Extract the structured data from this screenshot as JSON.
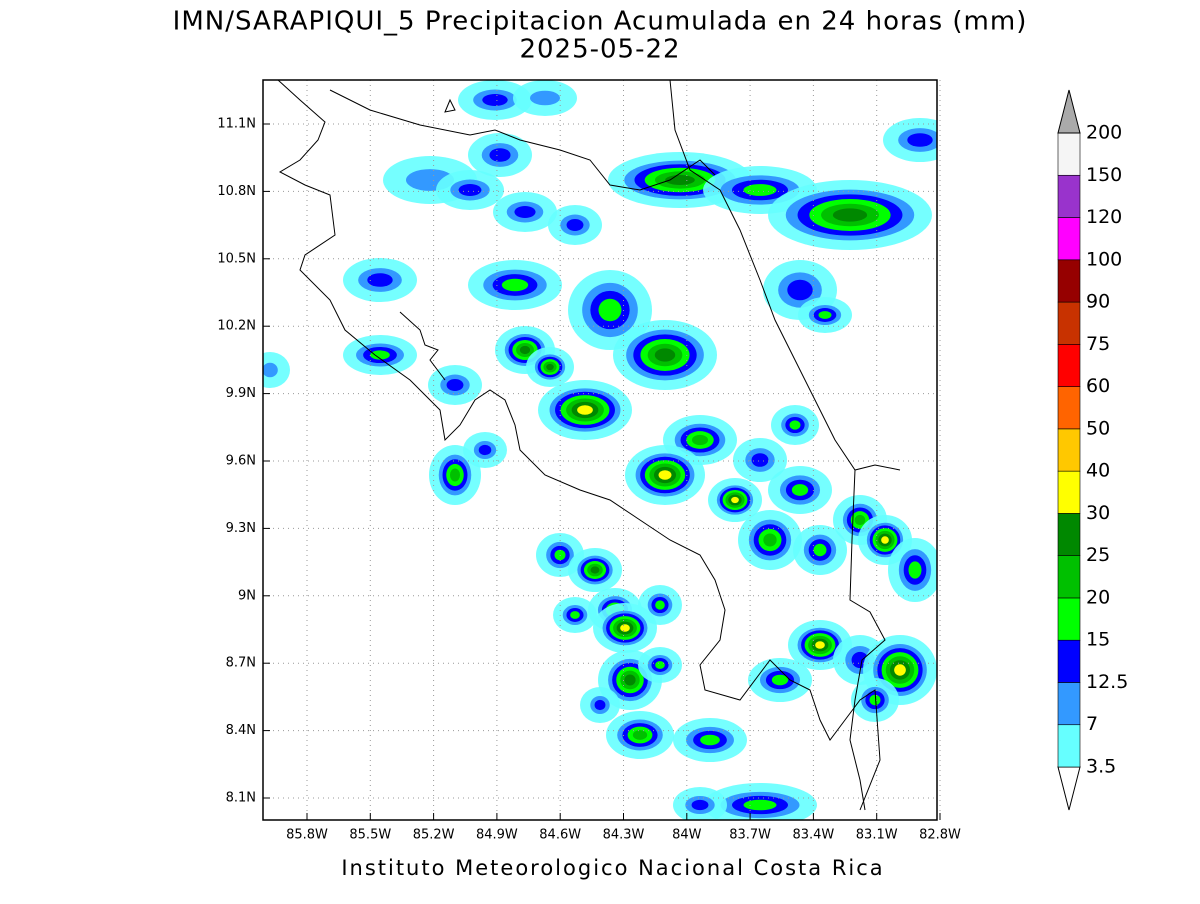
{
  "map": {
    "title": "IMN/SARAPIQUI_5 Precipitacion Acumulada en 24 horas (mm)",
    "subtitle": "2025-05-22",
    "lon_labels": [
      "85.8W",
      "85.5W",
      "85.2W",
      "84.9W",
      "84.6W",
      "84.3W",
      "84W",
      "83.7W",
      "83.4W",
      "83.1W",
      "82.8W"
    ],
    "lat_labels": [
      "11.1N",
      "10.8N",
      "10.5N",
      "10.2N",
      "9.9N",
      "9.6N",
      "9.3N",
      "9N",
      "8.7N",
      "8.4N",
      "8.1N"
    ],
    "colorbar": {
      "levels": [
        3.5,
        7,
        12.5,
        15,
        20,
        25,
        30,
        40,
        50,
        60,
        75,
        90,
        100,
        120,
        150,
        200
      ],
      "colors": [
        "#ffffff",
        "#66ffff",
        "#3399ff",
        "#0000ff",
        "#00ff00",
        "#00c000",
        "#008800",
        "#ffff00",
        "#ffc800",
        "#ff6400",
        "#ff0000",
        "#c83200",
        "#960000",
        "#ff00ff",
        "#9933cc",
        "#f5f5f5",
        "#aaaaaa"
      ]
    },
    "footer": "Instituto Meteorologico Nacional Costa Rica"
  }
}
